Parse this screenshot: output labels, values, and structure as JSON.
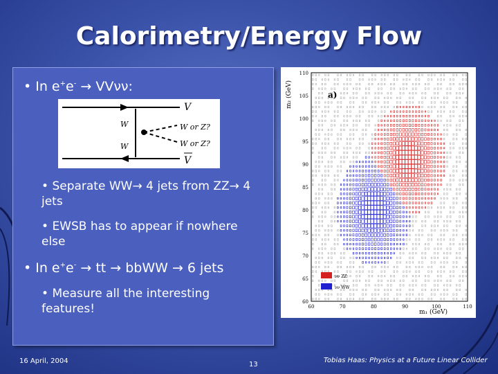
{
  "slide": {
    "title": "Calorimetry/Energy Flow",
    "bullet1_prefix": "In e",
    "bullet1_sup1": "+",
    "bullet1_mid": "e",
    "bullet1_sup2": "-",
    "bullet1_suffix": " → VVνν:",
    "sub1": "Separate WW→ 4 jets from ZZ→ 4 jets",
    "sub2": "EWSB has to appear if nowhere else",
    "bullet2_prefix": "In e",
    "bullet2_sup1": "+",
    "bullet2_mid": "e",
    "bullet2_sup2": "-",
    "bullet2_suffix": " → tt → bbWW → 6 jets",
    "sub3": "Measure all the interesting features!"
  },
  "diagram": {
    "labels": [
      "V",
      "W",
      "W or Z?",
      "W",
      "W or Z?",
      "V"
    ]
  },
  "plot": {
    "panel_label": "a)",
    "ylabel": "m₂ (GeV)",
    "xlabel": "m₁ (GeV)",
    "x_ticks": [
      "60",
      "70",
      "80",
      "90",
      "100",
      "110"
    ],
    "y_ticks": [
      "110",
      "105",
      "100",
      "95",
      "90",
      "85",
      "80",
      "75",
      "70",
      "65",
      "60"
    ],
    "legend": [
      {
        "label": "νν ZZ",
        "color": "#d42020"
      },
      {
        "label": "νν WW",
        "color": "#2020d0"
      }
    ]
  },
  "footer": {
    "date": "16 April, 2004",
    "page": "13",
    "author": "Tobias Haas: Physics at a Future Linear Collider"
  },
  "colors": {
    "background": "#3a52a8",
    "panel": "#4a5fbe",
    "zz": "#d42020",
    "ww": "#2020d0"
  }
}
